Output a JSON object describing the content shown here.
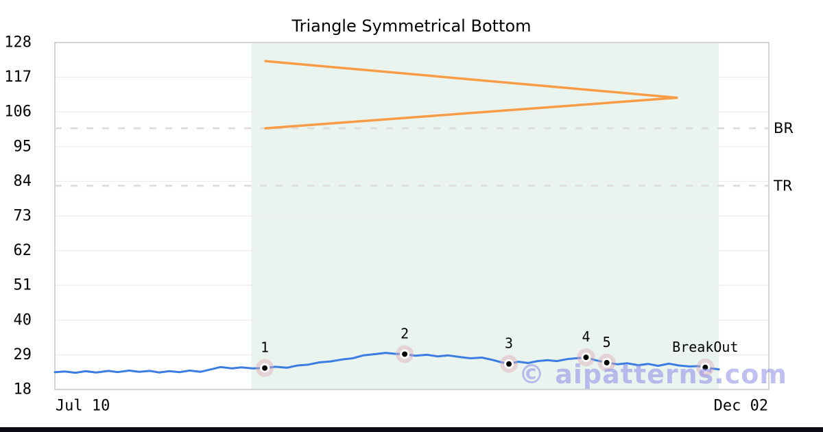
{
  "page": {
    "background": "#ffffff",
    "footer_bar_color": "#0a0a14"
  },
  "chart_data": {
    "type": "line",
    "title": "Triangle Symmetrical Bottom",
    "xlabel": "",
    "ylabel": "",
    "ylim": [
      18,
      128
    ],
    "yticks": [
      128,
      117,
      106,
      95,
      84,
      73,
      62,
      51,
      40,
      29,
      18
    ],
    "xticks": [
      {
        "label": "Jul 10",
        "f": 0.039
      },
      {
        "label": "Dec 02",
        "f": 0.961
      }
    ],
    "grid": "horizontal",
    "legend": "none",
    "colors": {
      "price_line": "#3a7ce0",
      "pattern_line": "#f89c47",
      "level_dash": "#dcdcdc",
      "grid_line": "#ededed",
      "plot_border": "#d0d0d0",
      "shaded_region": "#e9f4ef",
      "marker_dot": "#000000",
      "marker_halo": "rgba(222,170,182,0.45)",
      "watermark": "rgba(138,138,232,0.55)"
    },
    "series": [
      {
        "name": "price",
        "points": [
          [
            0.0,
            23.5
          ],
          [
            0.014,
            23.7
          ],
          [
            0.029,
            23.3
          ],
          [
            0.043,
            23.8
          ],
          [
            0.058,
            23.4
          ],
          [
            0.075,
            23.9
          ],
          [
            0.088,
            23.5
          ],
          [
            0.104,
            24.0
          ],
          [
            0.118,
            23.6
          ],
          [
            0.133,
            23.9
          ],
          [
            0.146,
            23.4
          ],
          [
            0.16,
            23.8
          ],
          [
            0.175,
            23.5
          ],
          [
            0.189,
            24.0
          ],
          [
            0.204,
            23.6
          ],
          [
            0.219,
            24.4
          ],
          [
            0.232,
            25.1
          ],
          [
            0.248,
            24.7
          ],
          [
            0.261,
            25.0
          ],
          [
            0.277,
            24.7
          ],
          [
            0.294,
            24.8
          ],
          [
            0.309,
            25.2
          ],
          [
            0.325,
            24.9
          ],
          [
            0.34,
            25.6
          ],
          [
            0.355,
            25.9
          ],
          [
            0.371,
            26.6
          ],
          [
            0.386,
            26.9
          ],
          [
            0.402,
            27.5
          ],
          [
            0.417,
            27.9
          ],
          [
            0.432,
            28.8
          ],
          [
            0.448,
            29.2
          ],
          [
            0.463,
            29.6
          ],
          [
            0.477,
            29.3
          ],
          [
            0.49,
            29.2
          ],
          [
            0.505,
            28.7
          ],
          [
            0.521,
            29.0
          ],
          [
            0.536,
            28.5
          ],
          [
            0.551,
            28.8
          ],
          [
            0.567,
            28.3
          ],
          [
            0.582,
            27.9
          ],
          [
            0.598,
            28.1
          ],
          [
            0.613,
            27.4
          ],
          [
            0.624,
            26.7
          ],
          [
            0.636,
            26.1
          ],
          [
            0.649,
            26.8
          ],
          [
            0.663,
            26.4
          ],
          [
            0.676,
            27.0
          ],
          [
            0.69,
            27.3
          ],
          [
            0.703,
            27.0
          ],
          [
            0.717,
            27.6
          ],
          [
            0.73,
            27.9
          ],
          [
            0.744,
            28.2
          ],
          [
            0.757,
            27.3
          ],
          [
            0.773,
            26.5
          ],
          [
            0.788,
            26.0
          ],
          [
            0.802,
            26.3
          ],
          [
            0.817,
            25.7
          ],
          [
            0.831,
            26.1
          ],
          [
            0.845,
            25.5
          ],
          [
            0.86,
            26.2
          ],
          [
            0.874,
            25.6
          ],
          [
            0.889,
            25.3
          ],
          [
            0.901,
            25.4
          ],
          [
            0.911,
            25.0
          ],
          [
            0.922,
            24.6
          ],
          [
            0.93,
            24.4
          ]
        ]
      }
    ],
    "pattern": {
      "name": "symmetrical-triangle",
      "upper_line": {
        "from": [
          0.295,
          122.1
        ],
        "to": [
          0.871,
          110.5
        ]
      },
      "lower_line": {
        "from": [
          0.295,
          100.8
        ],
        "to": [
          0.871,
          110.5
        ]
      }
    },
    "shaded_region": {
      "from_f": 0.275,
      "to_f": 0.93
    },
    "levels": [
      {
        "label": "BR",
        "value": 100.8
      },
      {
        "label": "TR",
        "value": 82.6
      }
    ],
    "markers": [
      {
        "label": "1",
        "f": 0.294,
        "value": 24.8
      },
      {
        "label": "2",
        "f": 0.49,
        "value": 29.2
      },
      {
        "label": "3",
        "f": 0.636,
        "value": 26.1
      },
      {
        "label": "4",
        "f": 0.744,
        "value": 28.2
      },
      {
        "label": "5",
        "f": 0.773,
        "value": 26.5
      },
      {
        "label": "BreakOut",
        "f": 0.911,
        "value": 25.0
      }
    ],
    "watermark": {
      "text": "© aipatterns.com"
    }
  }
}
